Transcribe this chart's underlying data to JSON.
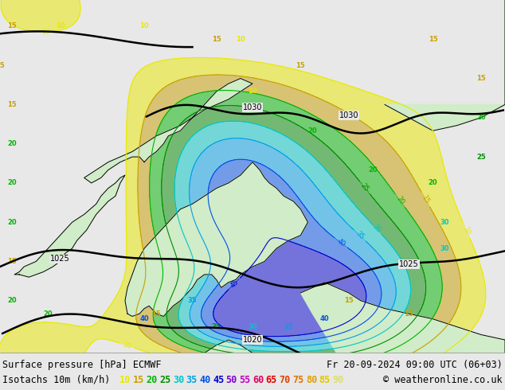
{
  "title_line1": "Surface pressure [hPa] ECMWF",
  "legend_label": "Isotachs 10m (km/h)",
  "date_str": "Fr 20-09-2024 09:00 UTC (06+03)",
  "copyright": "© weatheronline.co.uk",
  "legend_speeds": [
    10,
    15,
    20,
    25,
    30,
    35,
    40,
    45,
    50,
    55,
    60,
    65,
    70,
    75,
    80,
    85,
    90
  ],
  "legend_colors": [
    "#e8e800",
    "#c8a000",
    "#00b400",
    "#008c00",
    "#00c8c8",
    "#00a0e8",
    "#0050e8",
    "#0000d0",
    "#8000d0",
    "#c000c0",
    "#e00060",
    "#e00000",
    "#e04000",
    "#e07000",
    "#e0a000",
    "#e0c800",
    "#e0e060"
  ],
  "sea_color": "#e8e8e8",
  "land_color": "#d0ecc8",
  "bottom_bg": "#ffffff",
  "isobar_color": "#000000"
}
